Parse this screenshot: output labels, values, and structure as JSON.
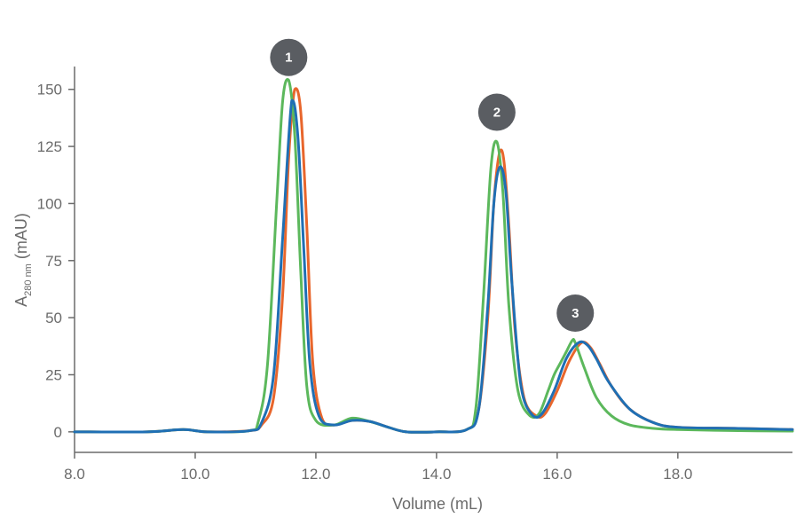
{
  "chart_data": {
    "type": "line",
    "title": "",
    "xlabel": "Volume (mL)",
    "ylabel_main": "A",
    "ylabel_sub": "280 nm",
    "ylabel_unit": " (mAU)",
    "xlim": [
      8.0,
      19.9
    ],
    "ylim": [
      -9,
      160
    ],
    "x_ticks": [
      8,
      10,
      12,
      14,
      16,
      18
    ],
    "x_tick_labels": [
      "8.0",
      "10.0",
      "12.0",
      "14.0",
      "16.0",
      "18.0"
    ],
    "y_ticks": [
      0,
      25,
      50,
      75,
      100,
      125,
      150
    ],
    "y_tick_labels": [
      "0",
      "25",
      "50",
      "75",
      "100",
      "125",
      "150"
    ],
    "grid": false,
    "legend": "none",
    "peak_labels": [
      {
        "label": "1",
        "x": 11.55,
        "y": 164
      },
      {
        "label": "2",
        "x": 15.0,
        "y": 140
      },
      {
        "label": "3",
        "x": 16.3,
        "y": 52
      }
    ],
    "series": [
      {
        "color": "#e8662c",
        "x": [
          8.0,
          9.2,
          9.8,
          10.2,
          10.9,
          11.1,
          11.3,
          11.45,
          11.55,
          11.65,
          11.75,
          11.85,
          11.95,
          12.1,
          12.3,
          12.6,
          12.9,
          13.2,
          13.5,
          14.0,
          14.5,
          14.7,
          14.85,
          14.95,
          15.05,
          15.12,
          15.2,
          15.3,
          15.45,
          15.65,
          15.8,
          16.0,
          16.2,
          16.4,
          16.55,
          16.7,
          16.9,
          17.2,
          17.6,
          18.0,
          19.0,
          19.9
        ],
        "y": [
          0,
          0,
          1,
          0,
          0.5,
          3,
          15,
          60,
          120,
          150,
          140,
          90,
          30,
          6,
          3,
          5,
          4.5,
          2,
          0,
          0,
          1,
          10,
          50,
          100,
          123,
          118,
          90,
          45,
          15,
          7,
          8,
          18,
          31,
          39,
          37,
          30,
          20,
          10,
          4,
          2,
          1.5,
          1
        ]
      },
      {
        "color": "#5cb85c",
        "x": [
          8.0,
          9.2,
          9.8,
          10.2,
          10.9,
          11.05,
          11.2,
          11.35,
          11.45,
          11.55,
          11.65,
          11.75,
          11.85,
          12.0,
          12.3,
          12.6,
          12.9,
          13.2,
          13.5,
          14.0,
          14.5,
          14.65,
          14.78,
          14.9,
          15.0,
          15.1,
          15.2,
          15.35,
          15.55,
          15.7,
          15.85,
          15.95,
          16.05,
          16.15,
          16.25,
          16.3,
          16.45,
          16.65,
          16.9,
          17.2,
          17.6,
          18.0,
          19.0,
          19.9
        ],
        "y": [
          0,
          0,
          1,
          0,
          0.5,
          5,
          30,
          100,
          145,
          154,
          130,
          70,
          20,
          5,
          3,
          6,
          4.5,
          2,
          0,
          0,
          1,
          10,
          60,
          115,
          127,
          105,
          55,
          18,
          7,
          8,
          18,
          25,
          30,
          35,
          40,
          39,
          28,
          15,
          7,
          3,
          1.5,
          1,
          0.5,
          0.3
        ]
      },
      {
        "color": "#1f6fb4",
        "x": [
          8.0,
          9.2,
          9.8,
          10.2,
          10.9,
          11.1,
          11.3,
          11.45,
          11.6,
          11.7,
          11.8,
          11.9,
          12.05,
          12.3,
          12.6,
          12.9,
          13.2,
          13.5,
          14.0,
          14.5,
          14.7,
          14.85,
          14.95,
          15.05,
          15.15,
          15.25,
          15.4,
          15.6,
          15.75,
          15.95,
          16.15,
          16.35,
          16.5,
          16.65,
          16.85,
          17.2,
          17.6,
          18.0,
          19.0,
          19.9
        ],
        "y": [
          0,
          0,
          1,
          0,
          0.5,
          4,
          25,
          85,
          145,
          130,
          80,
          30,
          7,
          3,
          5,
          4.5,
          2,
          0,
          0,
          1,
          10,
          55,
          100,
          116,
          105,
          65,
          20,
          7,
          8,
          18,
          32,
          39,
          38,
          32,
          22,
          10,
          4,
          2,
          1.5,
          1
        ]
      }
    ]
  }
}
